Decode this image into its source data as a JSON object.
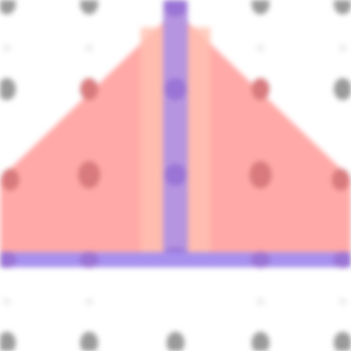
{
  "colors": {
    "background": "#ffffff",
    "grid_dot": "#9a9a9a",
    "grid_dot_faint": "#eeeeee",
    "triangle_fill": "#ffaaa8",
    "triangle_inner_band": "#ffc0b0",
    "triangle_dot": "#d87a7e",
    "axis_line": "#b595e0",
    "axis_dot": "#9b74d6",
    "baseline": "#a890ee"
  }
}
